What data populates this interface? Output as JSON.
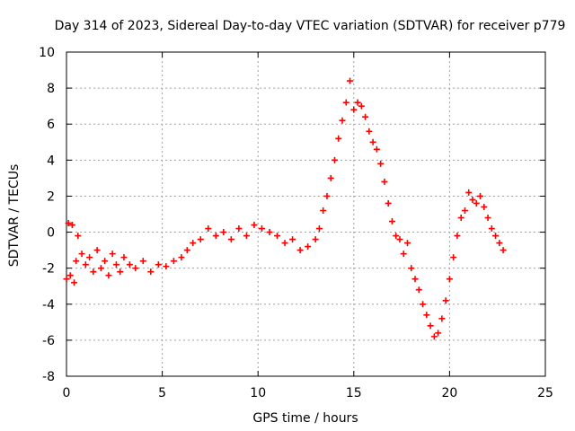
{
  "chart_data": {
    "type": "scatter",
    "title": "Day 314 of 2023, Sidereal Day-to-day VTEC variation (SDTVAR) for receiver p779",
    "xlabel": "GPS time / hours",
    "ylabel": "SDTVAR / TECUs",
    "xlim": [
      0,
      25
    ],
    "ylim": [
      -8,
      10
    ],
    "xticks": [
      "0",
      "5",
      "10",
      "15",
      "20",
      "25"
    ],
    "yticks": [
      "-8",
      "-6",
      "-4",
      "-2",
      "0",
      "2",
      "4",
      "6",
      "8",
      "10"
    ],
    "grid": true,
    "marker": "+",
    "color": "#ff0000",
    "series": [
      {
        "name": "SDTVAR",
        "x": [
          0.0,
          0.1,
          0.2,
          0.3,
          0.4,
          0.5,
          0.6,
          0.8,
          1.0,
          1.2,
          1.4,
          1.6,
          1.8,
          2.0,
          2.2,
          2.4,
          2.6,
          2.8,
          3.0,
          3.3,
          3.6,
          4.0,
          4.4,
          4.8,
          5.2,
          5.6,
          6.0,
          6.3,
          6.6,
          7.0,
          7.4,
          7.8,
          8.2,
          8.6,
          9.0,
          9.4,
          9.8,
          10.2,
          10.6,
          11.0,
          11.4,
          11.8,
          12.2,
          12.6,
          13.0,
          13.2,
          13.4,
          13.6,
          13.8,
          14.0,
          14.2,
          14.4,
          14.6,
          14.8,
          15.0,
          15.2,
          15.4,
          15.6,
          15.8,
          16.0,
          16.2,
          16.4,
          16.6,
          16.8,
          17.0,
          17.2,
          17.4,
          17.6,
          17.8,
          18.0,
          18.2,
          18.4,
          18.6,
          18.8,
          19.0,
          19.2,
          19.4,
          19.6,
          19.8,
          20.0,
          20.2,
          20.4,
          20.6,
          20.8,
          21.0,
          21.2,
          21.4,
          21.6,
          21.8,
          22.0,
          22.2,
          22.4,
          22.6,
          22.8
        ],
        "y": [
          -2.6,
          0.5,
          -2.4,
          0.4,
          -2.8,
          -1.6,
          -0.2,
          -1.2,
          -1.8,
          -1.4,
          -2.2,
          -1.0,
          -2.0,
          -1.6,
          -2.4,
          -1.2,
          -1.8,
          -2.2,
          -1.4,
          -1.8,
          -2.0,
          -1.6,
          -2.2,
          -1.8,
          -1.9,
          -1.6,
          -1.4,
          -1.0,
          -0.6,
          -0.4,
          0.2,
          -0.2,
          0.0,
          -0.4,
          0.2,
          -0.2,
          0.4,
          0.2,
          0.0,
          -0.2,
          -0.6,
          -0.4,
          -1.0,
          -0.8,
          -0.4,
          0.2,
          1.2,
          2.0,
          3.0,
          4.0,
          5.2,
          6.2,
          7.2,
          8.4,
          6.8,
          7.2,
          7.0,
          6.4,
          5.6,
          5.0,
          4.6,
          3.8,
          2.8,
          1.6,
          0.6,
          -0.2,
          -0.4,
          -1.2,
          -0.6,
          -2.0,
          -2.6,
          -3.2,
          -4.0,
          -4.6,
          -5.2,
          -5.8,
          -5.6,
          -4.8,
          -3.8,
          -2.6,
          -1.4,
          -0.2,
          0.8,
          1.2,
          2.2,
          1.8,
          1.6,
          2.0,
          1.4,
          0.8,
          0.2,
          -0.2,
          -0.6,
          -1.0
        ]
      }
    ]
  }
}
